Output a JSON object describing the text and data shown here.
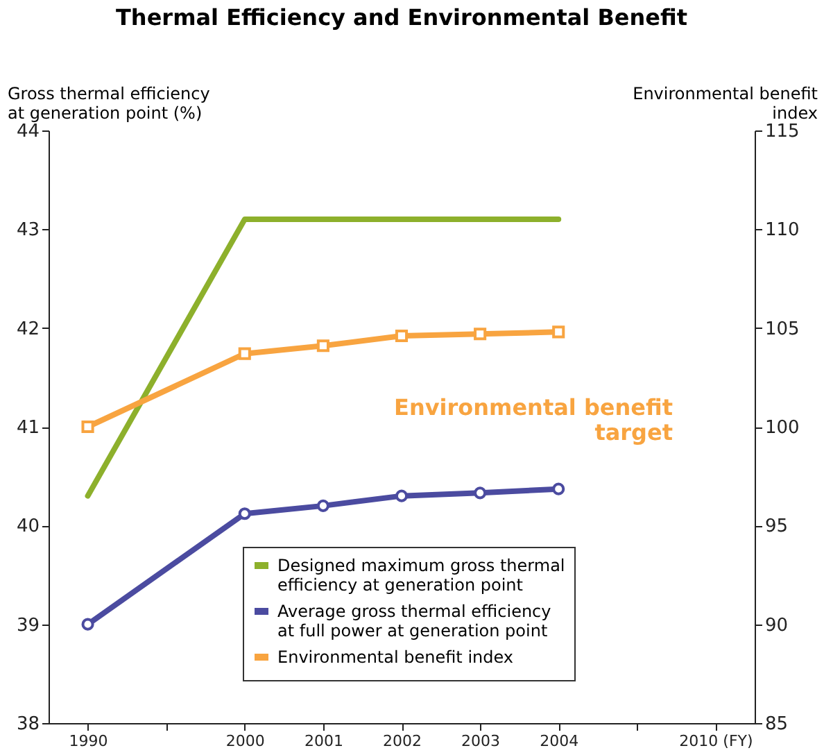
{
  "chart_data": {
    "type": "line",
    "title": "Thermal Efficiency and Environmental Benefit",
    "ylabel": "Gross thermal efficiency at generation point (%)",
    "y2label": "Environmental benefit index",
    "categories": [
      "1990",
      null,
      "2000",
      "2001",
      "2002",
      "2003",
      "2004",
      null,
      "2010 (FY)"
    ],
    "series": [
      {
        "name": "Designed maximum gross thermal efficiency at generation point",
        "color": "#8db02c",
        "marker": "none",
        "values": [
          40.3,
          null,
          43.1,
          43.1,
          43.1,
          43.1,
          43.1,
          null,
          null
        ]
      },
      {
        "name": "Average gross thermal efficiency at full power at generation point",
        "color": "#4b4ba0",
        "marker": "circle",
        "values": [
          39.0,
          null,
          40.12,
          40.2,
          40.3,
          40.33,
          40.37,
          null,
          null
        ]
      },
      {
        "name": "Environmental benefit index",
        "color": "#f8a440",
        "marker": "square",
        "axis": "y2",
        "values": [
          100,
          null,
          103.7,
          104.1,
          104.6,
          104.7,
          104.8,
          null,
          null
        ]
      }
    ],
    "ylim": [
      38,
      44
    ],
    "yticks": [
      38,
      39,
      40,
      41,
      42,
      43,
      44
    ],
    "y2lim": [
      85,
      115
    ],
    "y2ticks": [
      85,
      90,
      95,
      100,
      105,
      110,
      115
    ],
    "annotations": [
      "Environmental benefit target"
    ],
    "grid": false,
    "legend": "bottom right"
  }
}
